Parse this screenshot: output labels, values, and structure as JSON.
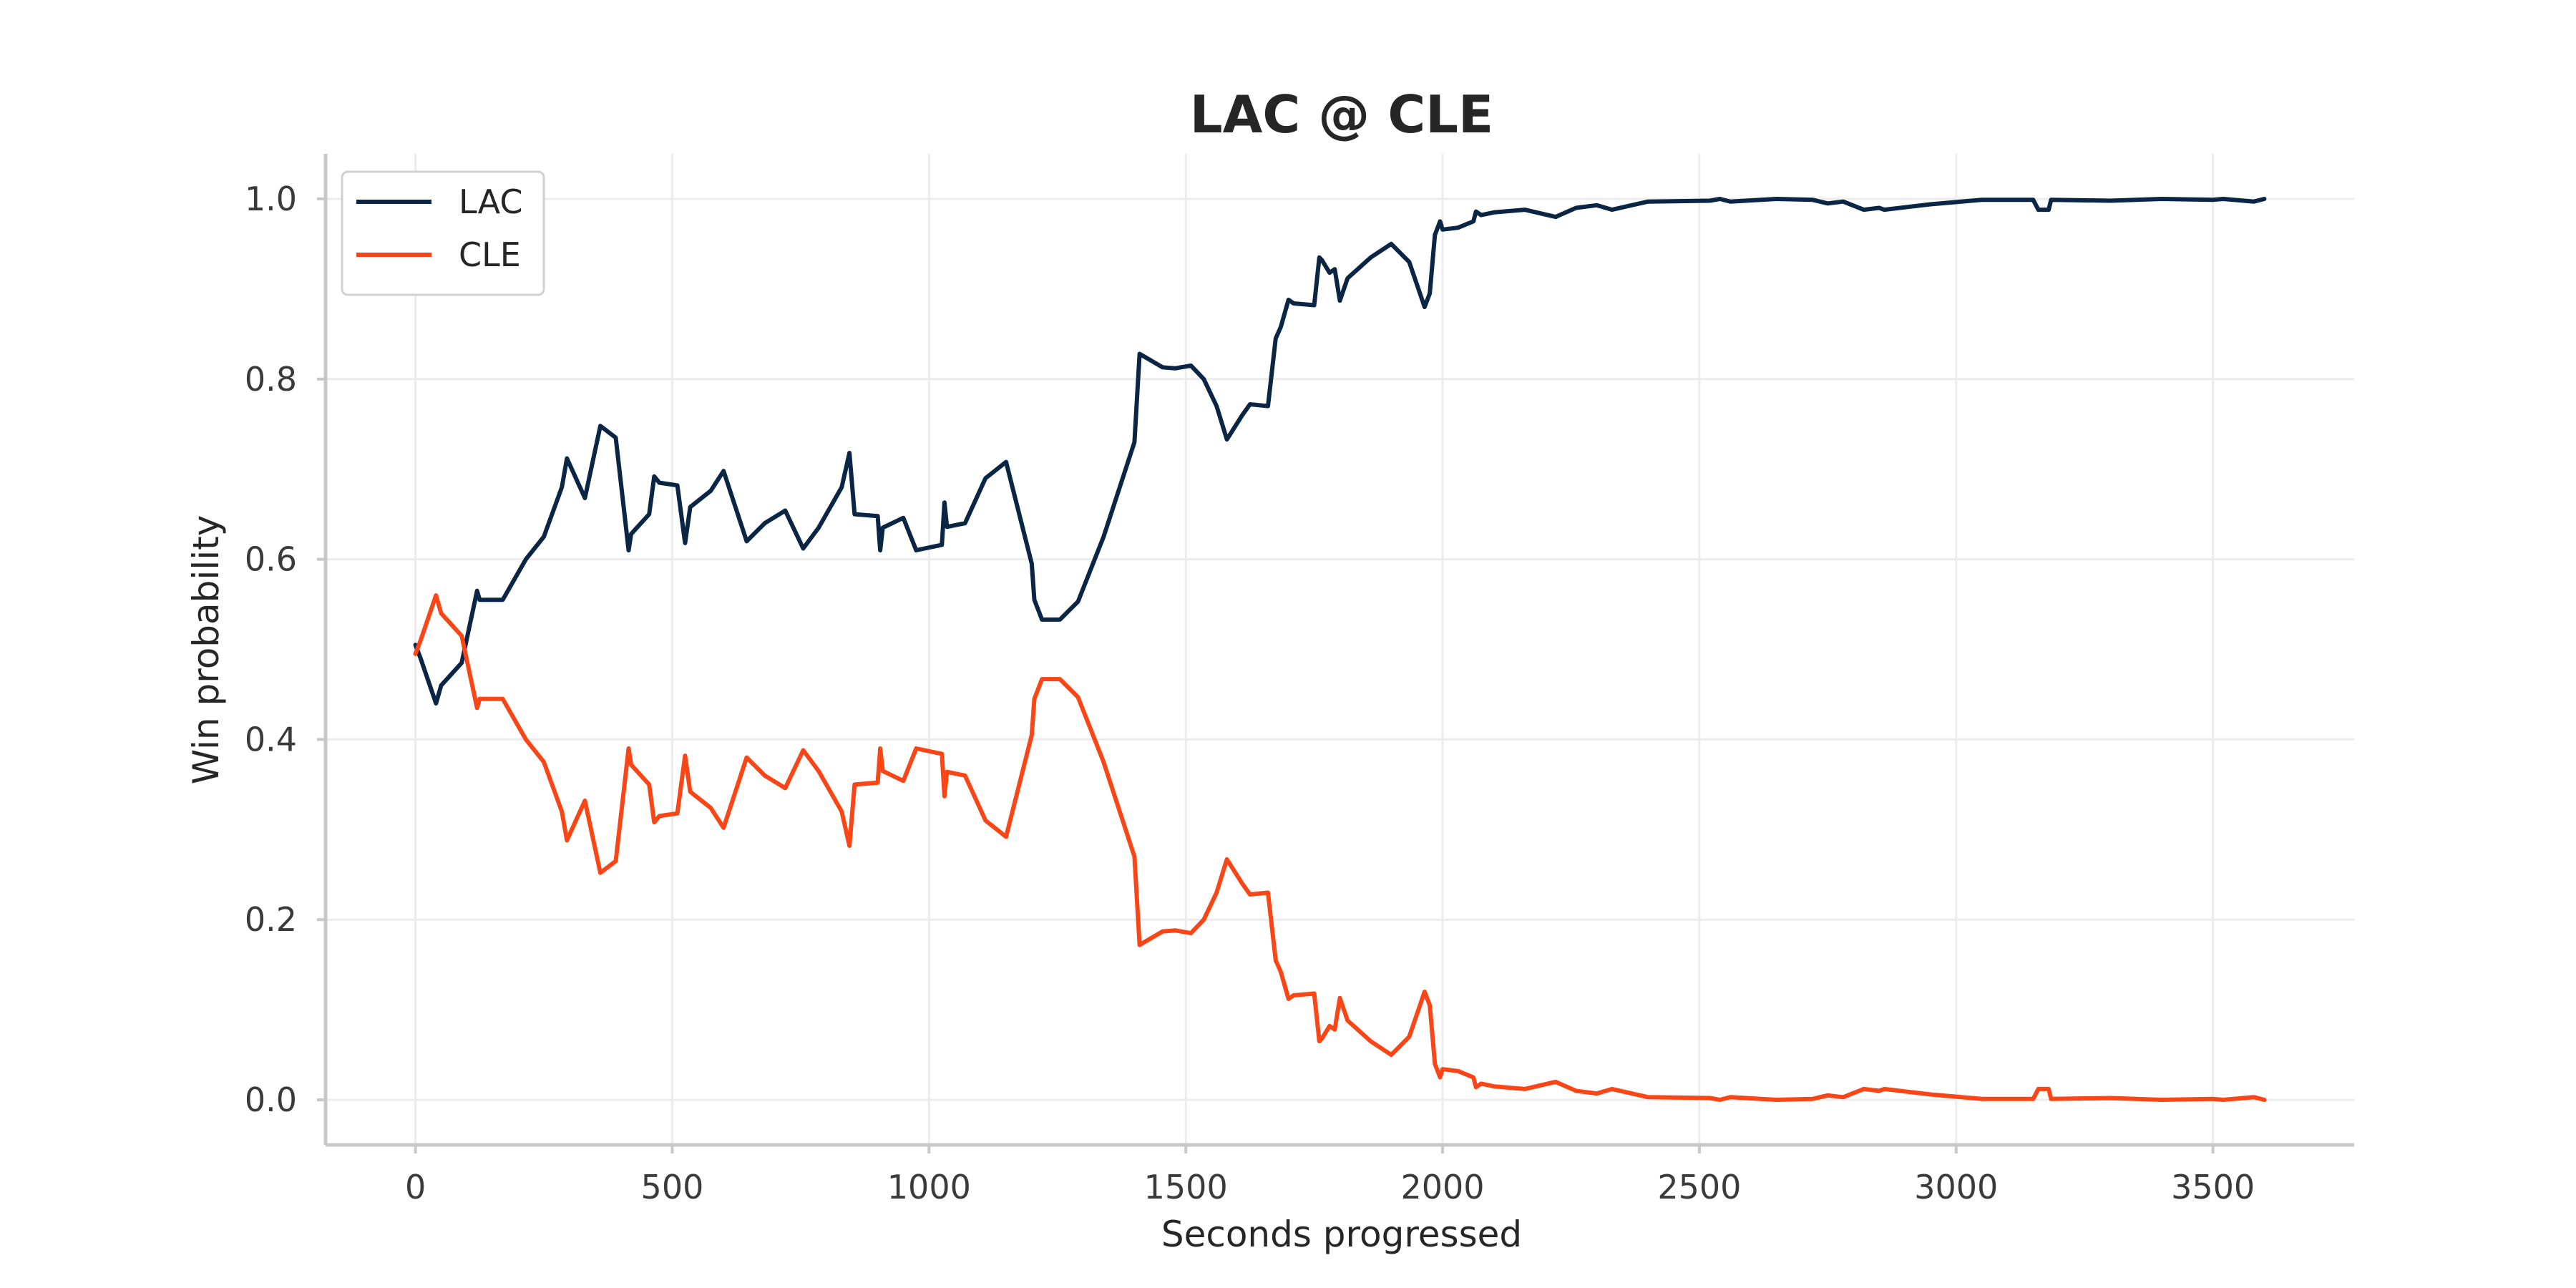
{
  "chart_data": {
    "type": "line",
    "title": "LAC @ CLE",
    "xlabel": "Seconds progressed",
    "ylabel": "Win probability",
    "xlim": [
      -175,
      3775
    ],
    "ylim": [
      -0.05,
      1.05
    ],
    "xticks": [
      0,
      500,
      1000,
      1500,
      2000,
      2500,
      3000,
      3500
    ],
    "xtick_labels": [
      "0",
      "500",
      "1000",
      "1500",
      "2000",
      "2500",
      "3000",
      "3500"
    ],
    "yticks": [
      0.0,
      0.2,
      0.4,
      0.6,
      0.8,
      1.0
    ],
    "ytick_labels": [
      "0.0",
      "0.2",
      "0.4",
      "0.6",
      "0.8",
      "1.0"
    ],
    "grid": true,
    "legend_position": "top-left",
    "series": [
      {
        "name": "LAC",
        "color": "#0b2545",
        "points": [
          [
            0,
            0.505
          ],
          [
            10,
            0.49
          ],
          [
            40,
            0.44
          ],
          [
            50,
            0.46
          ],
          [
            90,
            0.485
          ],
          [
            120,
            0.565
          ],
          [
            125,
            0.555
          ],
          [
            170,
            0.555
          ],
          [
            215,
            0.6
          ],
          [
            250,
            0.625
          ],
          [
            285,
            0.68
          ],
          [
            295,
            0.712
          ],
          [
            330,
            0.668
          ],
          [
            360,
            0.748
          ],
          [
            390,
            0.735
          ],
          [
            415,
            0.61
          ],
          [
            420,
            0.628
          ],
          [
            455,
            0.65
          ],
          [
            465,
            0.692
          ],
          [
            475,
            0.685
          ],
          [
            510,
            0.682
          ],
          [
            525,
            0.618
          ],
          [
            535,
            0.658
          ],
          [
            575,
            0.676
          ],
          [
            600,
            0.698
          ],
          [
            645,
            0.62
          ],
          [
            680,
            0.64
          ],
          [
            720,
            0.654
          ],
          [
            755,
            0.612
          ],
          [
            785,
            0.635
          ],
          [
            830,
            0.68
          ],
          [
            845,
            0.718
          ],
          [
            855,
            0.65
          ],
          [
            900,
            0.648
          ],
          [
            905,
            0.61
          ],
          [
            910,
            0.635
          ],
          [
            950,
            0.646
          ],
          [
            975,
            0.61
          ],
          [
            1025,
            0.616
          ],
          [
            1030,
            0.663
          ],
          [
            1035,
            0.636
          ],
          [
            1070,
            0.64
          ],
          [
            1110,
            0.69
          ],
          [
            1150,
            0.708
          ],
          [
            1200,
            0.595
          ],
          [
            1205,
            0.555
          ],
          [
            1220,
            0.533
          ],
          [
            1255,
            0.533
          ],
          [
            1290,
            0.553
          ],
          [
            1340,
            0.625
          ],
          [
            1400,
            0.73
          ],
          [
            1410,
            0.828
          ],
          [
            1455,
            0.813
          ],
          [
            1480,
            0.812
          ],
          [
            1510,
            0.815
          ],
          [
            1535,
            0.8
          ],
          [
            1560,
            0.77
          ],
          [
            1580,
            0.733
          ],
          [
            1610,
            0.76
          ],
          [
            1625,
            0.772
          ],
          [
            1660,
            0.77
          ],
          [
            1675,
            0.845
          ],
          [
            1685,
            0.858
          ],
          [
            1700,
            0.888
          ],
          [
            1710,
            0.884
          ],
          [
            1750,
            0.882
          ],
          [
            1760,
            0.935
          ],
          [
            1765,
            0.932
          ],
          [
            1780,
            0.918
          ],
          [
            1790,
            0.922
          ],
          [
            1800,
            0.887
          ],
          [
            1815,
            0.912
          ],
          [
            1860,
            0.935
          ],
          [
            1900,
            0.95
          ],
          [
            1935,
            0.93
          ],
          [
            1965,
            0.88
          ],
          [
            1975,
            0.895
          ],
          [
            1985,
            0.96
          ],
          [
            1995,
            0.975
          ],
          [
            2000,
            0.966
          ],
          [
            2030,
            0.968
          ],
          [
            2060,
            0.975
          ],
          [
            2065,
            0.986
          ],
          [
            2075,
            0.982
          ],
          [
            2100,
            0.985
          ],
          [
            2160,
            0.988
          ],
          [
            2220,
            0.98
          ],
          [
            2260,
            0.99
          ],
          [
            2300,
            0.993
          ],
          [
            2330,
            0.988
          ],
          [
            2400,
            0.997
          ],
          [
            2520,
            0.998
          ],
          [
            2540,
            1.0
          ],
          [
            2560,
            0.997
          ],
          [
            2650,
            1.0
          ],
          [
            2720,
            0.999
          ],
          [
            2750,
            0.995
          ],
          [
            2780,
            0.997
          ],
          [
            2820,
            0.988
          ],
          [
            2850,
            0.99
          ],
          [
            2860,
            0.988
          ],
          [
            2950,
            0.994
          ],
          [
            3050,
            0.999
          ],
          [
            3150,
            0.999
          ],
          [
            3160,
            0.988
          ],
          [
            3180,
            0.988
          ],
          [
            3185,
            0.999
          ],
          [
            3300,
            0.998
          ],
          [
            3400,
            1.0
          ],
          [
            3500,
            0.999
          ],
          [
            3520,
            1.0
          ],
          [
            3580,
            0.997
          ],
          [
            3600,
            1.0
          ]
        ]
      },
      {
        "name": "CLE",
        "color": "#fa4616",
        "points": [
          [
            0,
            0.495
          ],
          [
            10,
            0.51
          ],
          [
            40,
            0.56
          ],
          [
            50,
            0.54
          ],
          [
            90,
            0.515
          ],
          [
            120,
            0.435
          ],
          [
            125,
            0.445
          ],
          [
            170,
            0.445
          ],
          [
            215,
            0.4
          ],
          [
            250,
            0.375
          ],
          [
            285,
            0.32
          ],
          [
            295,
            0.288
          ],
          [
            330,
            0.332
          ],
          [
            360,
            0.252
          ],
          [
            390,
            0.265
          ],
          [
            415,
            0.39
          ],
          [
            420,
            0.372
          ],
          [
            455,
            0.35
          ],
          [
            465,
            0.308
          ],
          [
            475,
            0.315
          ],
          [
            510,
            0.318
          ],
          [
            525,
            0.382
          ],
          [
            535,
            0.342
          ],
          [
            575,
            0.324
          ],
          [
            600,
            0.302
          ],
          [
            645,
            0.38
          ],
          [
            680,
            0.36
          ],
          [
            720,
            0.346
          ],
          [
            755,
            0.388
          ],
          [
            785,
            0.365
          ],
          [
            830,
            0.32
          ],
          [
            845,
            0.282
          ],
          [
            855,
            0.35
          ],
          [
            900,
            0.352
          ],
          [
            905,
            0.39
          ],
          [
            910,
            0.365
          ],
          [
            950,
            0.354
          ],
          [
            975,
            0.39
          ],
          [
            1025,
            0.384
          ],
          [
            1030,
            0.337
          ],
          [
            1035,
            0.364
          ],
          [
            1070,
            0.36
          ],
          [
            1110,
            0.31
          ],
          [
            1150,
            0.292
          ],
          [
            1200,
            0.405
          ],
          [
            1205,
            0.445
          ],
          [
            1220,
            0.467
          ],
          [
            1255,
            0.467
          ],
          [
            1290,
            0.447
          ],
          [
            1340,
            0.375
          ],
          [
            1400,
            0.27
          ],
          [
            1410,
            0.172
          ],
          [
            1455,
            0.187
          ],
          [
            1480,
            0.188
          ],
          [
            1510,
            0.185
          ],
          [
            1535,
            0.2
          ],
          [
            1560,
            0.23
          ],
          [
            1580,
            0.267
          ],
          [
            1610,
            0.24
          ],
          [
            1625,
            0.228
          ],
          [
            1660,
            0.23
          ],
          [
            1675,
            0.155
          ],
          [
            1685,
            0.142
          ],
          [
            1700,
            0.112
          ],
          [
            1710,
            0.116
          ],
          [
            1750,
            0.118
          ],
          [
            1760,
            0.065
          ],
          [
            1765,
            0.068
          ],
          [
            1780,
            0.082
          ],
          [
            1790,
            0.078
          ],
          [
            1800,
            0.113
          ],
          [
            1815,
            0.088
          ],
          [
            1860,
            0.065
          ],
          [
            1900,
            0.05
          ],
          [
            1935,
            0.07
          ],
          [
            1965,
            0.12
          ],
          [
            1975,
            0.105
          ],
          [
            1985,
            0.04
          ],
          [
            1995,
            0.025
          ],
          [
            2000,
            0.034
          ],
          [
            2030,
            0.032
          ],
          [
            2060,
            0.025
          ],
          [
            2065,
            0.014
          ],
          [
            2075,
            0.018
          ],
          [
            2100,
            0.015
          ],
          [
            2160,
            0.012
          ],
          [
            2220,
            0.02
          ],
          [
            2260,
            0.01
          ],
          [
            2300,
            0.007
          ],
          [
            2330,
            0.012
          ],
          [
            2400,
            0.003
          ],
          [
            2520,
            0.002
          ],
          [
            2540,
            0.0
          ],
          [
            2560,
            0.003
          ],
          [
            2650,
            0.0
          ],
          [
            2720,
            0.001
          ],
          [
            2750,
            0.005
          ],
          [
            2780,
            0.003
          ],
          [
            2820,
            0.012
          ],
          [
            2850,
            0.01
          ],
          [
            2860,
            0.012
          ],
          [
            2950,
            0.006
          ],
          [
            3050,
            0.001
          ],
          [
            3150,
            0.001
          ],
          [
            3160,
            0.012
          ],
          [
            3180,
            0.012
          ],
          [
            3185,
            0.001
          ],
          [
            3300,
            0.002
          ],
          [
            3400,
            0.0
          ],
          [
            3500,
            0.001
          ],
          [
            3520,
            0.0
          ],
          [
            3580,
            0.003
          ],
          [
            3600,
            0.0
          ]
        ]
      }
    ]
  }
}
